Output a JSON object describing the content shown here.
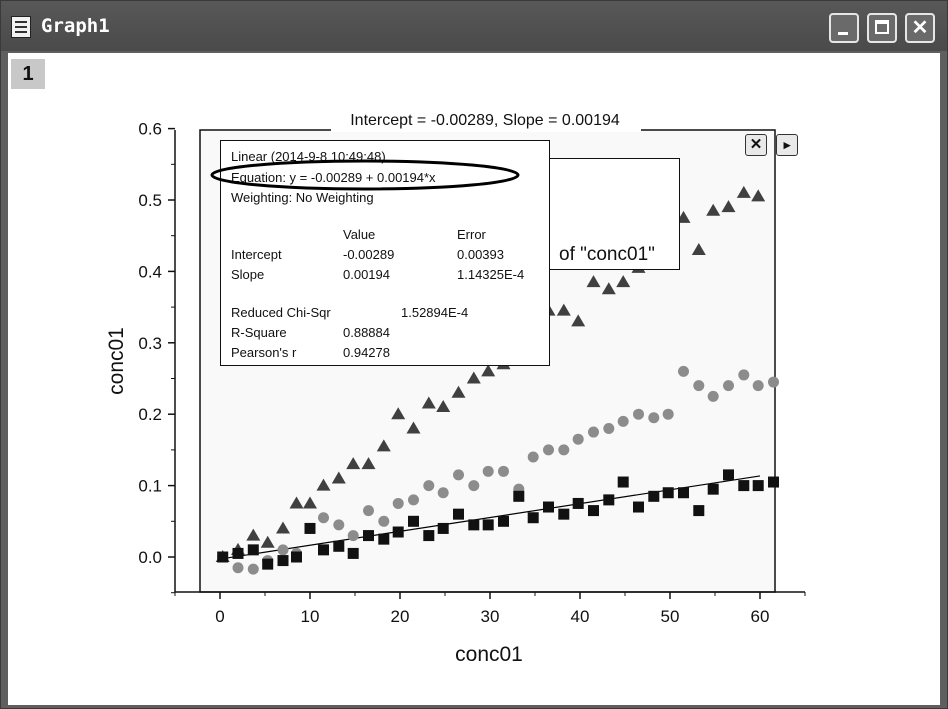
{
  "window": {
    "title": "Graph1",
    "layer_label": "1"
  },
  "graph": {
    "title": "Intercept = -0.00289, Slope = 0.00194",
    "xlabel": "conc01",
    "ylabel": "conc01",
    "legend_text": "of \"conc01\"",
    "close_glyph": "✕",
    "arrow_glyph": "▸"
  },
  "stats": {
    "header": "Linear (2014-9-8 10:49:48)",
    "equation": "Equation: y = -0.00289 + 0.00194*x",
    "weighting": "Weighting: No Weighting",
    "col_value": "Value",
    "col_error": "Error",
    "rows": [
      {
        "name": "Intercept",
        "value": "-0.00289",
        "error": "0.00393"
      },
      {
        "name": "Slope",
        "value": "0.00194",
        "error": "1.14325E-4"
      }
    ],
    "chi_label": "Reduced Chi-Sqr",
    "chi_value": "1.52894E-4",
    "r2_label": "R-Square",
    "r2_value": "0.88884",
    "pearson_label": "Pearson's r",
    "pearson_value": "0.94278"
  },
  "chart_data": {
    "type": "scatter",
    "title": "Intercept = -0.00289, Slope = 0.00194",
    "xlabel": "conc01",
    "ylabel": "conc01",
    "xlim": [
      -5,
      65
    ],
    "ylim": [
      -0.05,
      0.6
    ],
    "x_ticks": [
      0,
      10,
      20,
      30,
      40,
      50,
      60
    ],
    "y_ticks": [
      0.0,
      0.1,
      0.2,
      0.3,
      0.4,
      0.5,
      0.6
    ],
    "x_tick_labels": [
      "0",
      "10",
      "20",
      "30",
      "40",
      "50",
      "60"
    ],
    "y_tick_labels": [
      "0.0",
      "0.1",
      "0.2",
      "0.3",
      "0.4",
      "0.5",
      "0.6"
    ],
    "fit_line": {
      "intercept": -0.00289,
      "slope": 0.00194,
      "x_range": [
        0,
        60
      ]
    },
    "series": [
      {
        "marker": "triangle",
        "color": "#404040",
        "points": [
          [
            0.3,
            0.0
          ],
          [
            2,
            0.01
          ],
          [
            3.7,
            0.03
          ],
          [
            5.3,
            0.02
          ],
          [
            7,
            0.04
          ],
          [
            8.5,
            0.075
          ],
          [
            10,
            0.075
          ],
          [
            11.5,
            0.1
          ],
          [
            13.2,
            0.11
          ],
          [
            14.8,
            0.13
          ],
          [
            16.5,
            0.13
          ],
          [
            18.2,
            0.155
          ],
          [
            19.8,
            0.2
          ],
          [
            21.5,
            0.18
          ],
          [
            23.2,
            0.215
          ],
          [
            24.8,
            0.21
          ],
          [
            26.5,
            0.23
          ],
          [
            28.2,
            0.25
          ],
          [
            29.8,
            0.26
          ],
          [
            31.5,
            0.27
          ],
          [
            33.2,
            0.3
          ],
          [
            34.8,
            0.32
          ],
          [
            36.5,
            0.345
          ],
          [
            38.2,
            0.345
          ],
          [
            39.8,
            0.33
          ],
          [
            41.5,
            0.385
          ],
          [
            43.2,
            0.375
          ],
          [
            44.8,
            0.385
          ],
          [
            46.5,
            0.405
          ],
          [
            48.2,
            0.44
          ],
          [
            49.8,
            0.45
          ],
          [
            51.5,
            0.475
          ],
          [
            53.2,
            0.43
          ],
          [
            54.8,
            0.485
          ],
          [
            56.5,
            0.49
          ],
          [
            58.2,
            0.51
          ],
          [
            59.8,
            0.505
          ]
        ]
      },
      {
        "marker": "circle",
        "color": "#8c8c8c",
        "points": [
          [
            0.3,
            0.0
          ],
          [
            2,
            -0.015
          ],
          [
            3.7,
            -0.017
          ],
          [
            5.3,
            -0.005
          ],
          [
            7,
            0.01
          ],
          [
            8.5,
            0.005
          ],
          [
            10,
            0.04
          ],
          [
            11.5,
            0.055
          ],
          [
            13.2,
            0.045
          ],
          [
            14.8,
            0.03
          ],
          [
            16.5,
            0.065
          ],
          [
            18.2,
            0.05
          ],
          [
            19.8,
            0.075
          ],
          [
            21.5,
            0.08
          ],
          [
            23.2,
            0.1
          ],
          [
            24.8,
            0.09
          ],
          [
            26.5,
            0.115
          ],
          [
            28.2,
            0.1
          ],
          [
            29.8,
            0.12
          ],
          [
            31.5,
            0.12
          ],
          [
            33.2,
            0.095
          ],
          [
            34.8,
            0.14
          ],
          [
            36.5,
            0.15
          ],
          [
            38.2,
            0.15
          ],
          [
            39.8,
            0.165
          ],
          [
            41.5,
            0.175
          ],
          [
            43.2,
            0.18
          ],
          [
            44.8,
            0.19
          ],
          [
            46.5,
            0.2
          ],
          [
            48.2,
            0.195
          ],
          [
            49.8,
            0.2
          ],
          [
            51.5,
            0.26
          ],
          [
            53.2,
            0.24
          ],
          [
            54.8,
            0.225
          ],
          [
            56.5,
            0.24
          ],
          [
            58.2,
            0.255
          ],
          [
            59.8,
            0.24
          ],
          [
            61.5,
            0.245
          ]
        ]
      },
      {
        "marker": "square",
        "color": "#111111",
        "points": [
          [
            0.3,
            0.0
          ],
          [
            2,
            0.005
          ],
          [
            3.7,
            0.01
          ],
          [
            5.3,
            -0.01
          ],
          [
            7,
            -0.005
          ],
          [
            8.5,
            0.0
          ],
          [
            10,
            0.04
          ],
          [
            11.5,
            0.01
          ],
          [
            13.2,
            0.015
          ],
          [
            14.8,
            0.005
          ],
          [
            16.5,
            0.03
          ],
          [
            18.2,
            0.025
          ],
          [
            19.8,
            0.035
          ],
          [
            21.5,
            0.05
          ],
          [
            23.2,
            0.03
          ],
          [
            24.8,
            0.04
          ],
          [
            26.5,
            0.06
          ],
          [
            28.2,
            0.045
          ],
          [
            29.8,
            0.045
          ],
          [
            31.5,
            0.05
          ],
          [
            33.2,
            0.085
          ],
          [
            34.8,
            0.055
          ],
          [
            36.5,
            0.07
          ],
          [
            38.2,
            0.06
          ],
          [
            39.8,
            0.075
          ],
          [
            41.5,
            0.065
          ],
          [
            43.2,
            0.08
          ],
          [
            44.8,
            0.105
          ],
          [
            46.5,
            0.07
          ],
          [
            48.2,
            0.085
          ],
          [
            49.8,
            0.09
          ],
          [
            51.5,
            0.09
          ],
          [
            53.2,
            0.065
          ],
          [
            54.8,
            0.095
          ],
          [
            56.5,
            0.115
          ],
          [
            58.2,
            0.1
          ],
          [
            59.8,
            0.1
          ],
          [
            61.5,
            0.105
          ]
        ]
      }
    ]
  }
}
